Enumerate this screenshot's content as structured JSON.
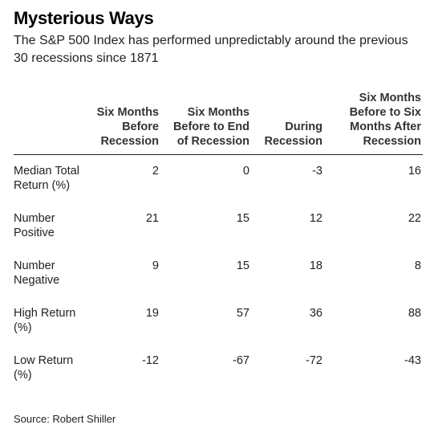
{
  "title": "Mysterious Ways",
  "subtitle": "The S&P 500 Index has performed unpredictably around the previous 30 recessions since 1871",
  "source": "Source: Robert Shiller",
  "chart_data": {
    "type": "table",
    "columns": [
      "Six Months Before Recession",
      "Six Months Before to End of Recession",
      "During Recession",
      "Six Months Before to Six Months After Recession"
    ],
    "rows": [
      {
        "label": "Median Total Return (%)",
        "values": [
          "2",
          "0",
          "-3",
          "16"
        ]
      },
      {
        "label": "Number Positive",
        "values": [
          "21",
          "15",
          "12",
          "22"
        ]
      },
      {
        "label": "Number Negative",
        "values": [
          "9",
          "15",
          "18",
          "8"
        ]
      },
      {
        "label": "High Return (%)",
        "values": [
          "19",
          "57",
          "36",
          "88"
        ]
      },
      {
        "label": "Low Return (%)",
        "values": [
          "-12",
          "-67",
          "-72",
          "-43"
        ]
      }
    ]
  }
}
